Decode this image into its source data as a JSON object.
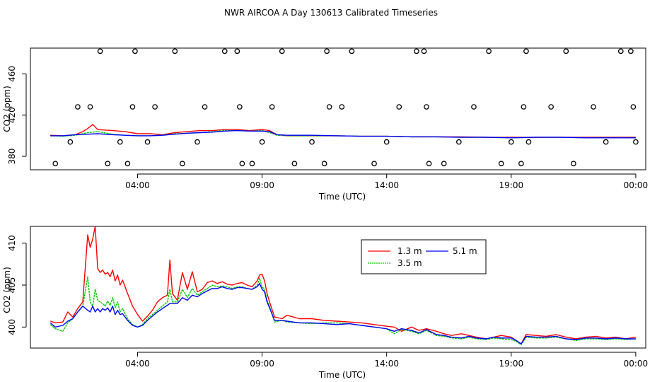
{
  "page": {
    "title": "NWR AIRCOA A  Day 130613  Calibrated Timeseries"
  },
  "chart_data": [
    {
      "id": "top",
      "type": "line",
      "xlabel": "Time (UTC)",
      "ylabel": "CO2 (ppm)",
      "xlim": [
        -0.3,
        24.4
      ],
      "ylim": [
        367,
        485
      ],
      "x_ticks": [
        {
          "v": 4,
          "label": "04:00"
        },
        {
          "v": 9,
          "label": "09:00"
        },
        {
          "v": 14,
          "label": "14:00"
        },
        {
          "v": 19,
          "label": "19:00"
        },
        {
          "v": 24,
          "label": "00:00"
        }
      ],
      "y_ticks": [
        {
          "v": 380,
          "label": "380"
        },
        {
          "v": 420,
          "label": "420"
        },
        {
          "v": 460,
          "label": "460"
        }
      ],
      "series": [
        {
          "name": "1.3 m",
          "color": "#ff0000",
          "x": [
            0.5,
            1,
            1.5,
            1.8,
            2,
            2.2,
            2.4,
            3,
            3.5,
            4,
            4.5,
            5,
            5.5,
            6,
            6.5,
            7,
            7.5,
            8,
            8.5,
            9,
            9.3,
            9.6,
            10,
            11,
            12,
            13,
            14,
            15,
            16,
            17,
            18,
            19,
            20,
            21,
            22,
            23,
            24
          ],
          "y": [
            400.5,
            400,
            401,
            404,
            407,
            411,
            406,
            405,
            404,
            402,
            402,
            401,
            403,
            404,
            405,
            405,
            406,
            406,
            405,
            406,
            405,
            401,
            400,
            400,
            400,
            399.5,
            399.5,
            399,
            399,
            399,
            398.5,
            398.5,
            398.5,
            398.5,
            398.5,
            398.5,
            398.5
          ]
        },
        {
          "name": "3.5 m",
          "color": "#00cc00",
          "x": [
            0.5,
            1,
            1.5,
            2,
            2.4,
            3,
            3.5,
            4,
            4.5,
            5,
            5.5,
            6,
            6.5,
            7,
            7.5,
            8,
            8.5,
            9,
            9.3,
            9.6,
            10,
            11,
            12,
            13,
            14,
            15,
            16,
            17,
            18,
            19,
            20,
            21,
            22,
            23,
            24
          ],
          "y": [
            400,
            399.5,
            400.5,
            403,
            404,
            401.5,
            400.5,
            400,
            400,
            400.5,
            402,
            402.5,
            403,
            404,
            405,
            405,
            404.5,
            405,
            403,
            400.5,
            400,
            400,
            400,
            399.5,
            399.5,
            399,
            399,
            398.5,
            398.5,
            398,
            398.5,
            398.5,
            398,
            398,
            398
          ]
        },
        {
          "name": "5.1 m",
          "color": "#0000ff",
          "x": [
            0.5,
            1,
            1.5,
            2,
            2.4,
            3,
            3.5,
            4,
            4.5,
            5,
            5.5,
            6,
            6.5,
            7,
            7.5,
            8,
            8.5,
            9,
            9.3,
            9.6,
            10,
            11,
            12,
            13,
            14,
            15,
            16,
            17,
            18,
            19,
            20,
            21,
            22,
            23,
            24
          ],
          "y": [
            400,
            400,
            401,
            401.5,
            402,
            401,
            400.5,
            400,
            400,
            400.5,
            401.5,
            402.5,
            403,
            403.5,
            404.5,
            405,
            404.5,
            404.5,
            404,
            401,
            400.5,
            400.5,
            400,
            399.5,
            399.5,
            399,
            399,
            398.5,
            398.5,
            398,
            398.5,
            398.5,
            398,
            398,
            398
          ]
        }
      ],
      "points": {
        "marker": "open-circle",
        "x": [
          0.7,
          1.3,
          1.6,
          2.1,
          2.5,
          2.8,
          3.3,
          3.6,
          3.8,
          3.9,
          4.4,
          4.7,
          5.5,
          5.8,
          6.4,
          6.7,
          7.5,
          8,
          8.1,
          8.2,
          8.6,
          9,
          9.4,
          9.8,
          10.3,
          11,
          11.5,
          11.6,
          11.7,
          12.2,
          12.6,
          13.5,
          14,
          14.5,
          15.2,
          15.5,
          15.6,
          15.7,
          16.3,
          16.9,
          17.5,
          18.1,
          18.6,
          19,
          19.4,
          19.5,
          19.6,
          19.7,
          20.6,
          21.2,
          21.5,
          22.3,
          22.8,
          23.4,
          23.8,
          23.9,
          24
        ],
        "y": [
          373,
          394,
          428,
          428,
          482,
          373,
          394,
          373,
          428,
          482,
          394,
          428,
          482,
          373,
          394,
          428,
          482,
          482,
          428,
          373,
          373,
          394,
          428,
          482,
          373,
          394,
          373,
          482,
          428,
          428,
          482,
          373,
          394,
          428,
          482,
          482,
          428,
          373,
          373,
          394,
          428,
          482,
          373,
          394,
          373,
          428,
          482,
          394,
          428,
          482,
          373,
          428,
          394,
          482,
          482,
          428,
          394
        ]
      }
    },
    {
      "id": "bottom",
      "type": "line",
      "xlabel": "Time (UTC)",
      "ylabel": "CO2 (ppm)",
      "xlim": [
        -0.3,
        24.4
      ],
      "ylim": [
        397.5,
        412
      ],
      "x_ticks": [
        {
          "v": 4,
          "label": "04:00"
        },
        {
          "v": 9,
          "label": "09:00"
        },
        {
          "v": 14,
          "label": "14:00"
        },
        {
          "v": 19,
          "label": "19:00"
        },
        {
          "v": 24,
          "label": "00:00"
        }
      ],
      "y_ticks": [
        {
          "v": 400,
          "label": "400"
        },
        {
          "v": 405,
          "label": "405"
        },
        {
          "v": 410,
          "label": "410"
        }
      ],
      "legend": {
        "position": "top-center",
        "entries": [
          "1.3 m",
          "5.1 m",
          "3.5 m"
        ]
      },
      "series": [
        {
          "name": "1.3 m",
          "color": "#ff0000",
          "x": [
            0.5,
            0.7,
            1,
            1.2,
            1.4,
            1.6,
            1.8,
            2,
            2.1,
            2.2,
            2.3,
            2.4,
            2.5,
            2.6,
            2.7,
            2.8,
            2.9,
            3,
            3.1,
            3.2,
            3.3,
            3.4,
            3.6,
            3.8,
            4,
            4.2,
            4.4,
            4.6,
            4.8,
            5,
            5.2,
            5.3,
            5.4,
            5.6,
            5.8,
            6,
            6.2,
            6.4,
            6.6,
            6.8,
            7,
            7.2,
            7.4,
            7.6,
            7.8,
            8,
            8.2,
            8.4,
            8.6,
            8.8,
            8.9,
            9,
            9.1,
            9.2,
            9.3,
            9.5,
            9.8,
            10,
            10.5,
            11,
            11.5,
            12,
            12.5,
            13,
            13.5,
            14,
            14.3,
            14.6,
            15,
            15.3,
            15.6,
            16,
            16.3,
            16.6,
            17,
            17.3,
            17.6,
            18,
            18.3,
            18.6,
            19,
            19.2,
            19.4,
            19.6,
            20,
            20.4,
            20.8,
            21.2,
            21.6,
            22,
            22.4,
            22.8,
            23.2,
            23.6,
            24
          ],
          "y": [
            400.7,
            400.5,
            400.6,
            401.8,
            401.2,
            402.2,
            403,
            411,
            409.5,
            410.5,
            412,
            407,
            406.5,
            406.8,
            406.3,
            406.5,
            406,
            406.8,
            405.5,
            406.2,
            405,
            405.6,
            404,
            402.5,
            401.5,
            400.7,
            401.3,
            402,
            403,
            403.5,
            403.8,
            408,
            404,
            403.2,
            406.5,
            404.5,
            406.6,
            404.2,
            404.5,
            405.3,
            405.5,
            405.2,
            405.4,
            405.1,
            405,
            405.2,
            405.3,
            405,
            404.8,
            405.5,
            406.2,
            406.3,
            405.5,
            404,
            403,
            401.2,
            401,
            401.4,
            401,
            401,
            400.8,
            400.7,
            400.6,
            400.5,
            400.3,
            400.1,
            400,
            399.5,
            400,
            399.6,
            399.8,
            399.5,
            399.2,
            399,
            399.2,
            399,
            398.8,
            398.6,
            398.8,
            399,
            398.8,
            398.4,
            398,
            399.1,
            399,
            398.9,
            399.1,
            398.8,
            398.6,
            398.8,
            398.9,
            398.7,
            398.8,
            398.6,
            398.8
          ]
        },
        {
          "name": "3.5 m",
          "color": "#00cc00",
          "x": [
            0.5,
            0.7,
            1,
            1.2,
            1.4,
            1.6,
            1.8,
            2,
            2.1,
            2.2,
            2.3,
            2.4,
            2.5,
            2.6,
            2.7,
            2.8,
            2.9,
            3,
            3.1,
            3.2,
            3.3,
            3.4,
            3.6,
            3.8,
            4,
            4.2,
            4.4,
            4.6,
            4.8,
            5,
            5.2,
            5.3,
            5.4,
            5.6,
            5.8,
            6,
            6.2,
            6.4,
            6.6,
            6.8,
            7,
            7.2,
            7.4,
            7.6,
            7.8,
            8,
            8.2,
            8.4,
            8.6,
            8.8,
            8.9,
            9,
            9.1,
            9.2,
            9.3,
            9.5,
            9.8,
            10,
            10.5,
            11,
            11.5,
            12,
            12.5,
            13,
            13.5,
            14,
            14.3,
            14.6,
            15,
            15.3,
            15.6,
            16,
            16.3,
            16.6,
            17,
            17.3,
            17.6,
            18,
            18.3,
            18.6,
            19,
            19.2,
            19.4,
            19.6,
            20,
            20.4,
            20.8,
            21.2,
            21.6,
            22,
            22.4,
            22.8,
            23.2,
            23.6,
            24
          ],
          "y": [
            400.3,
            399.8,
            399.5,
            400.5,
            401,
            401.8,
            402.5,
            406,
            403,
            402.5,
            404.5,
            403.2,
            403,
            402.8,
            402.5,
            403.1,
            402.6,
            403.5,
            402.3,
            403,
            401.8,
            402.2,
            401,
            400.3,
            400,
            400.3,
            401,
            401.5,
            402,
            402.5,
            403,
            404.5,
            403,
            403,
            404.5,
            403.5,
            404.6,
            403.8,
            404.2,
            404.6,
            405,
            404.8,
            404.9,
            404.8,
            404.6,
            404.8,
            404.8,
            404.6,
            404.5,
            405,
            405.8,
            404.8,
            404.5,
            403.2,
            402.5,
            400.6,
            400.8,
            400.6,
            400.5,
            400.4,
            400.5,
            400.5,
            400.4,
            400.2,
            400,
            399.8,
            399.2,
            399.7,
            399.5,
            399.2,
            399.6,
            399,
            398.9,
            398.7,
            398.6,
            398.8,
            398.6,
            398.5,
            398.7,
            398.6,
            398.5,
            398.3,
            397.9,
            398.8,
            398.7,
            398.7,
            398.8,
            398.6,
            398.4,
            398.6,
            398.6,
            398.5,
            398.6,
            398.5,
            398.6
          ]
        },
        {
          "name": "5.1 m",
          "color": "#0000ff",
          "x": [
            0.5,
            0.7,
            1,
            1.2,
            1.4,
            1.6,
            1.8,
            2,
            2.1,
            2.2,
            2.3,
            2.4,
            2.5,
            2.6,
            2.7,
            2.8,
            2.9,
            3,
            3.1,
            3.2,
            3.3,
            3.4,
            3.6,
            3.8,
            4,
            4.2,
            4.4,
            4.6,
            4.8,
            5,
            5.2,
            5.3,
            5.4,
            5.6,
            5.8,
            6,
            6.2,
            6.4,
            6.6,
            6.8,
            7,
            7.2,
            7.4,
            7.6,
            7.8,
            8,
            8.2,
            8.4,
            8.6,
            8.8,
            8.9,
            9,
            9.1,
            9.2,
            9.3,
            9.5,
            9.8,
            10,
            10.5,
            11,
            11.5,
            12,
            12.5,
            13,
            13.5,
            14,
            14.3,
            14.6,
            15,
            15.3,
            15.6,
            16,
            16.3,
            16.6,
            17,
            17.3,
            17.6,
            18,
            18.3,
            18.6,
            19,
            19.2,
            19.4,
            19.6,
            20,
            20.4,
            20.8,
            21.2,
            21.6,
            22,
            22.4,
            22.8,
            23.2,
            23.6,
            24
          ],
          "y": [
            400.5,
            400,
            400.2,
            400.7,
            401,
            401.8,
            402.5,
            402,
            401.8,
            402.5,
            401.8,
            402.2,
            401.8,
            402.2,
            402,
            402.3,
            401.8,
            402.5,
            401.5,
            402,
            401.5,
            401.6,
            400.8,
            400.2,
            400,
            400.2,
            400.8,
            401.3,
            401.8,
            402.2,
            402.6,
            402.8,
            402.8,
            402.8,
            403.5,
            403.2,
            403.8,
            403.6,
            404,
            404.3,
            404.6,
            404.6,
            404.8,
            404.6,
            404.5,
            404.7,
            404.7,
            404.6,
            404.5,
            404.8,
            405.2,
            404.5,
            404.2,
            403,
            402.3,
            400.8,
            400.8,
            400.7,
            400.5,
            400.5,
            400.4,
            400.3,
            400.4,
            400.2,
            400,
            399.8,
            399.5,
            399.8,
            399.6,
            399.3,
            399.7,
            399.1,
            399,
            398.8,
            398.7,
            398.9,
            398.7,
            398.6,
            398.8,
            398.7,
            398.7,
            398.4,
            398,
            398.9,
            398.8,
            398.8,
            398.9,
            398.6,
            398.5,
            398.7,
            398.7,
            398.6,
            398.7,
            398.6,
            398.6
          ]
        }
      ]
    }
  ]
}
